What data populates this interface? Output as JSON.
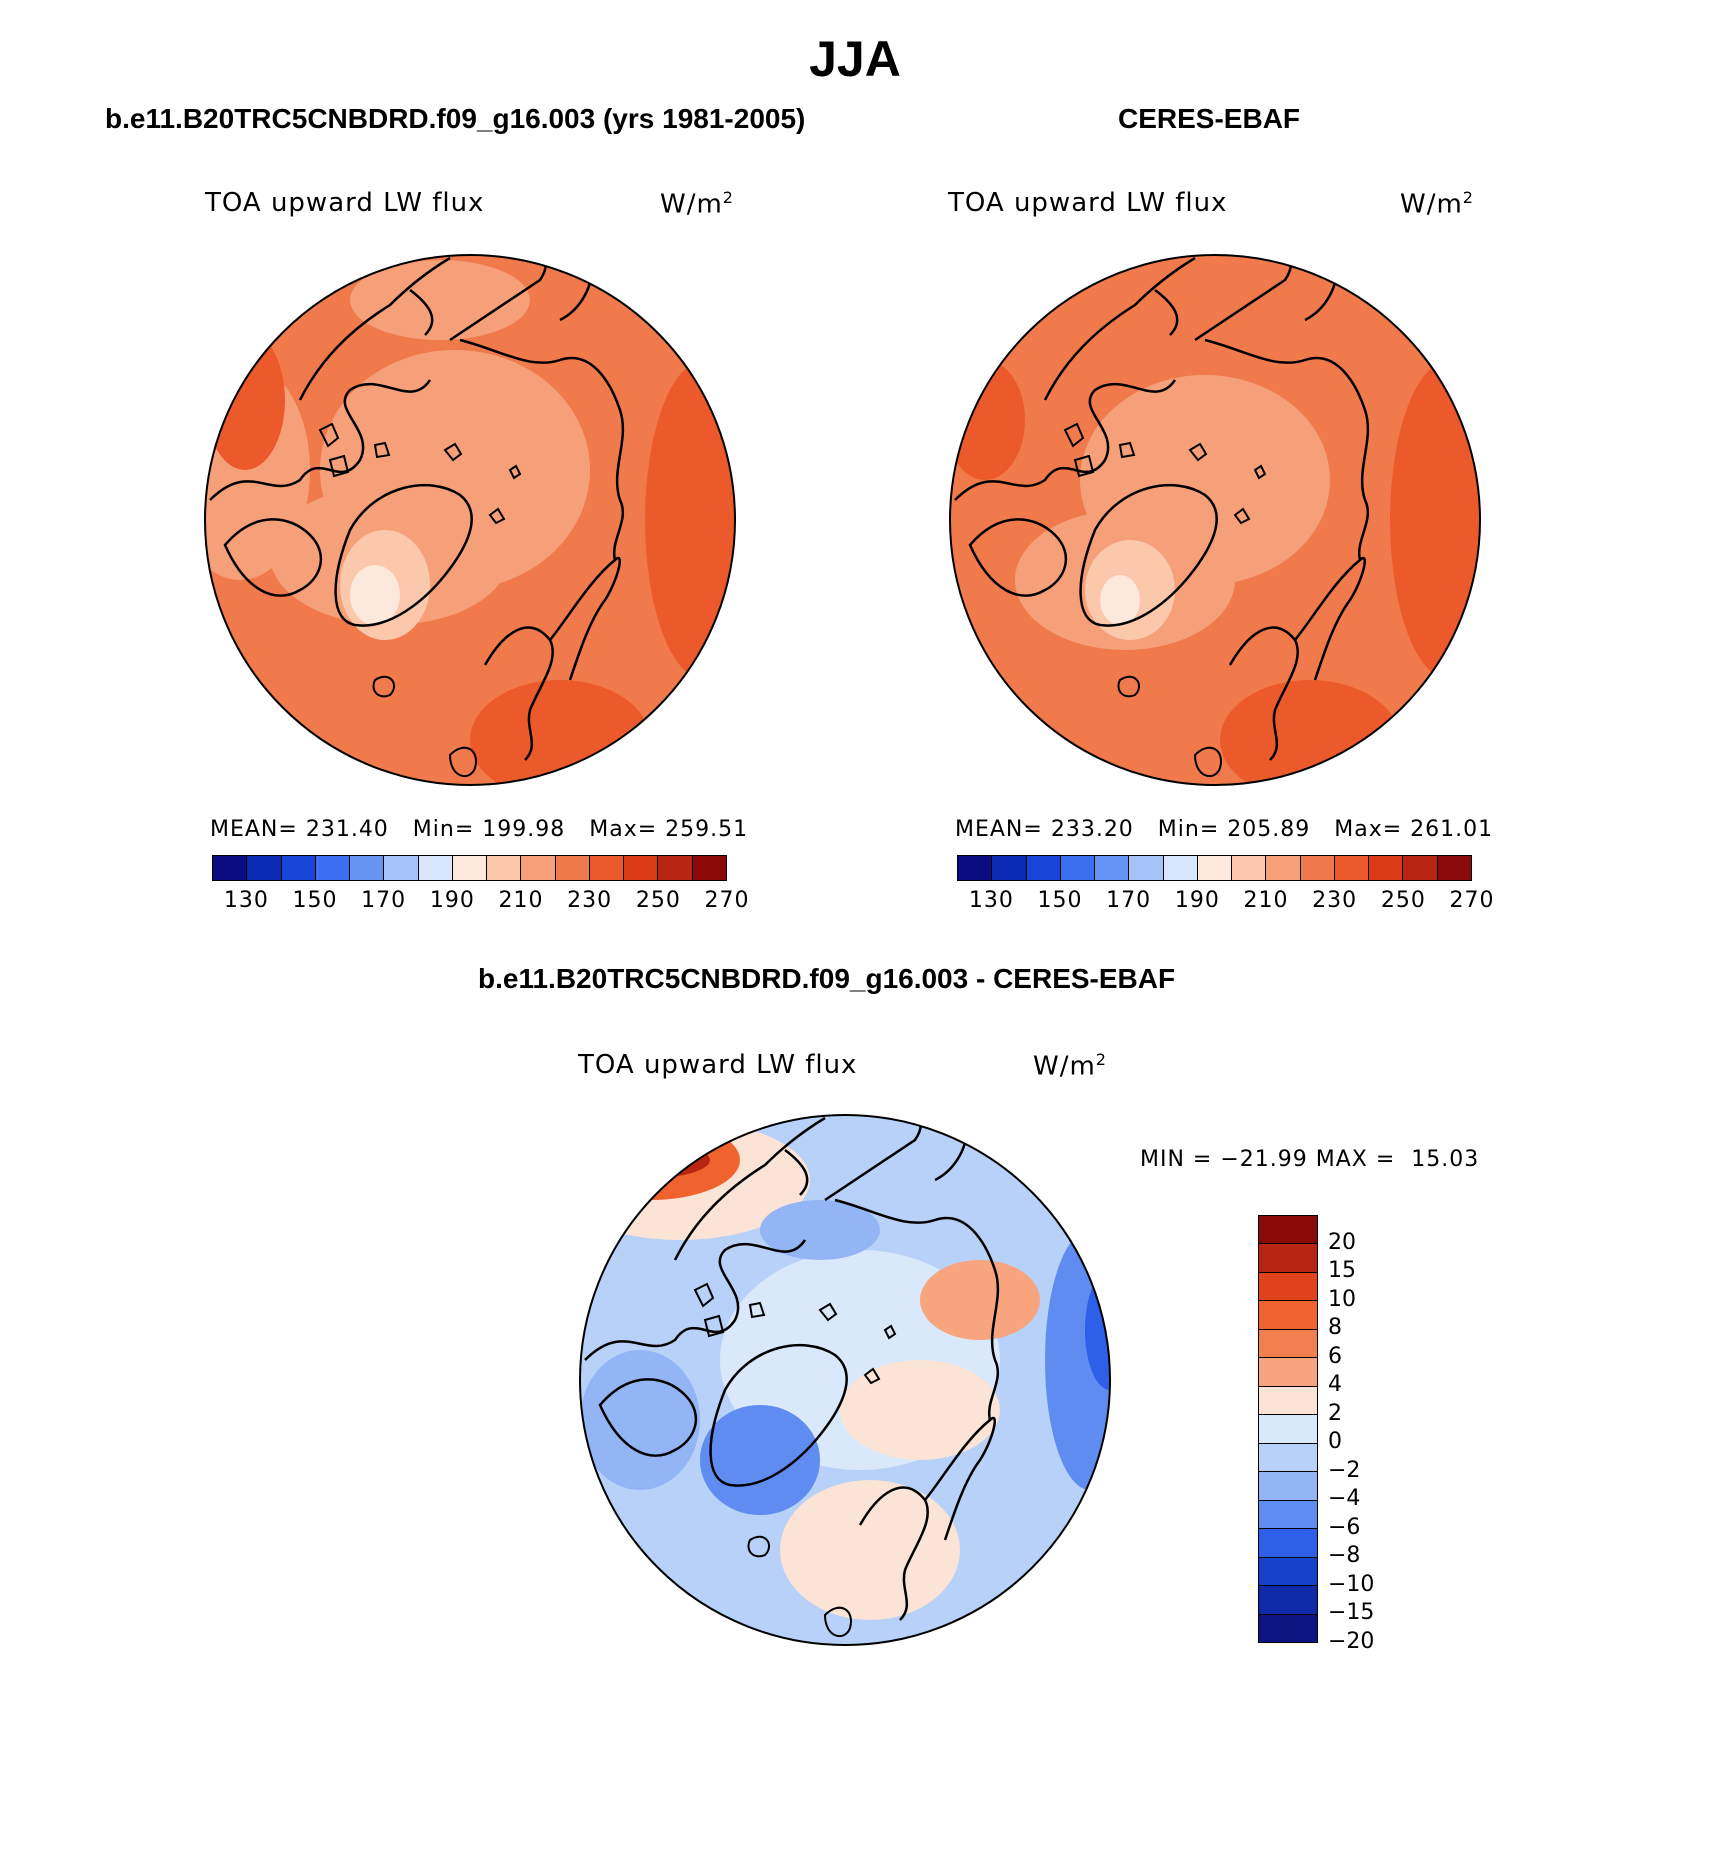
{
  "figure": {
    "title": "JJA"
  },
  "chart_data": [
    {
      "type": "heatmap",
      "projection": "north polar stereographic",
      "title": "b.e11.B20TRC5CNBDRD.f09_g16.003 (yrs 1981-2005)",
      "variable": "TOA upward LW flux",
      "units": "W/m",
      "units_exp": "2",
      "stats": {
        "mean_label": "MEAN=",
        "mean": "231.40",
        "min_label": "Min=",
        "min": "199.98",
        "max_label": "Max=",
        "max": "259.51"
      },
      "colorbar_ticks": [
        "130",
        "150",
        "170",
        "190",
        "210",
        "230",
        "250",
        "270"
      ],
      "value_range": [
        199.98,
        259.51
      ]
    },
    {
      "type": "heatmap",
      "projection": "north polar stereographic",
      "title": "CERES-EBAF",
      "variable": "TOA upward LW flux",
      "units": "W/m",
      "units_exp": "2",
      "stats": {
        "mean_label": "MEAN=",
        "mean": "233.20",
        "min_label": "Min=",
        "min": "205.89",
        "max_label": "Max=",
        "max": "261.01"
      },
      "colorbar_ticks": [
        "130",
        "150",
        "170",
        "190",
        "210",
        "230",
        "250",
        "270"
      ],
      "value_range": [
        205.89,
        261.01
      ]
    },
    {
      "type": "heatmap",
      "projection": "north polar stereographic",
      "title": "b.e11.B20TRC5CNBDRD.f09_g16.003 - CERES-EBAF",
      "variable": "TOA upward LW flux",
      "units": "W/m",
      "units_exp": "2",
      "minmax_text": "MIN = −21.99 MAX =  15.03",
      "value_range": [
        -21.99,
        15.03
      ],
      "colorbar_ticks": [
        "20",
        "15",
        "10",
        "8",
        "6",
        "4",
        "2",
        "0",
        "−2",
        "−4",
        "−6",
        "−8",
        "−10",
        "−15",
        "−20"
      ]
    }
  ],
  "colors": {
    "abs_scale": [
      "#0b0b82",
      "#0a2ab4",
      "#1844d8",
      "#3c6ef0",
      "#6694f2",
      "#a6c3f7",
      "#d7e6fb",
      "#fde8dc",
      "#fbc8ac",
      "#f6a079",
      "#f07a4b",
      "#ec5a2c",
      "#d93b15",
      "#b82512",
      "#8a0a0a"
    ],
    "diff_scale": [
      "#8a0a0a",
      "#b82512",
      "#e0421c",
      "#f0622e",
      "#f47f4e",
      "#f7a47f",
      "#fbe3d6",
      "#d9e8fb",
      "#b8d1f8",
      "#94b5f5",
      "#5f8cf0",
      "#2d5fe8",
      "#1641cc",
      "#0e2aa8",
      "#0b1582"
    ]
  }
}
